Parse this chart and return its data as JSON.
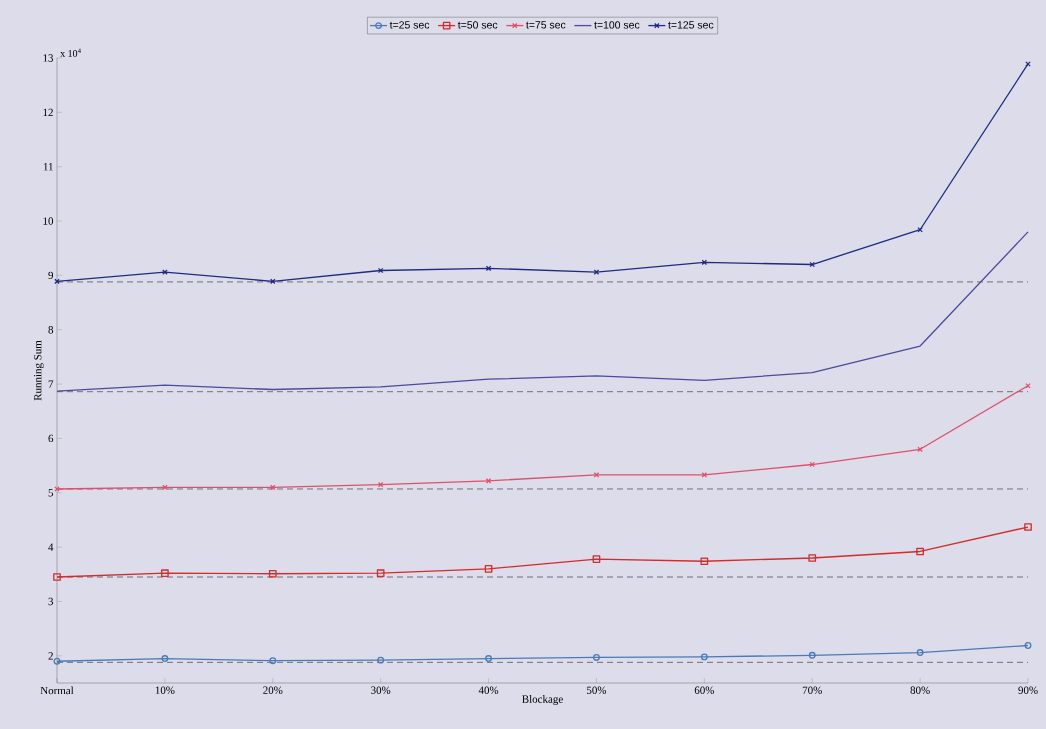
{
  "chart_data": {
    "type": "line",
    "xlabel": "Blockage",
    "ylabel": "Running Sum",
    "categories": [
      "Normal",
      "10%",
      "20%",
      "30%",
      "40%",
      "50%",
      "60%",
      "70%",
      "80%",
      "90%"
    ],
    "series": [
      {
        "name": "t=25 sec",
        "color": "#4a7ab8",
        "marker": "circle",
        "values": [
          1.9,
          1.95,
          1.91,
          1.92,
          1.95,
          1.97,
          1.98,
          2.01,
          2.06,
          2.19
        ]
      },
      {
        "name": "t=50 sec",
        "color": "#d42b2b",
        "marker": "square",
        "values": [
          3.45,
          3.52,
          3.51,
          3.52,
          3.6,
          3.78,
          3.74,
          3.8,
          3.92,
          4.37
        ]
      },
      {
        "name": "t=75 sec",
        "color": "#e0506a",
        "marker": "cross",
        "values": [
          5.07,
          5.1,
          5.1,
          5.15,
          5.22,
          5.33,
          5.33,
          5.52,
          5.8,
          6.97
        ]
      },
      {
        "name": "t=100 sec",
        "color": "#4b4a9c",
        "marker": "none",
        "values": [
          6.87,
          6.98,
          6.9,
          6.95,
          7.09,
          7.15,
          7.07,
          7.21,
          7.7,
          9.8
        ]
      },
      {
        "name": "t=125 sec",
        "color": "#1f2a80",
        "marker": "cross",
        "values": [
          8.89,
          9.06,
          8.89,
          9.09,
          9.13,
          9.06,
          9.24,
          9.2,
          9.84,
          12.89
        ]
      }
    ],
    "ylim": [
      1.5,
      13
    ],
    "yticks": [
      2,
      3,
      4,
      5,
      6,
      7,
      8,
      9,
      10,
      11,
      12,
      13
    ],
    "ref_lines": [
      {
        "axis": "y",
        "value": 1.88,
        "color": "#555555",
        "line_style": "dashed"
      },
      {
        "axis": "y",
        "value": 3.45,
        "color": "#555555",
        "line_style": "dashed"
      },
      {
        "axis": "y",
        "value": 5.07,
        "color": "#555555",
        "line_style": "dashed"
      },
      {
        "axis": "y",
        "value": 6.86,
        "color": "#555555",
        "line_style": "dashed"
      },
      {
        "axis": "y",
        "value": 8.88,
        "color": "#555555",
        "line_style": "dashed"
      }
    ],
    "annotations": [
      "x 10$^{4}$"
    ],
    "legend": "top",
    "grid": false,
    "line_style": "solid"
  }
}
